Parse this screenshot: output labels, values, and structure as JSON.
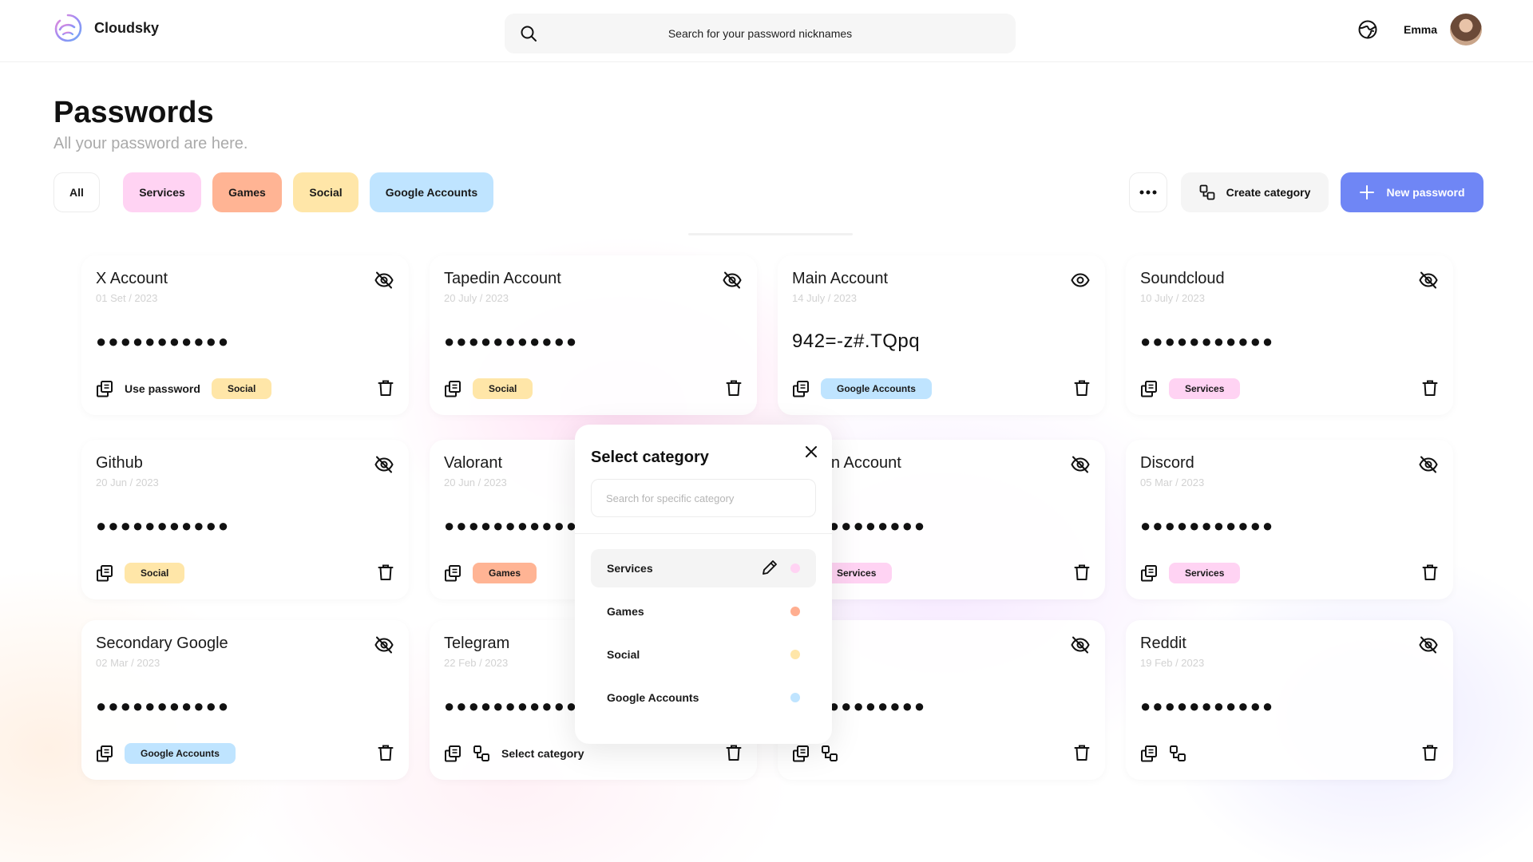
{
  "app": {
    "name": "Cloudsky"
  },
  "search": {
    "placeholder": "Search for your password nicknames"
  },
  "user": {
    "name": "Emma"
  },
  "page": {
    "title": "Passwords",
    "subtitle": "All your password are here."
  },
  "filters": [
    {
      "label": "All",
      "color": "#ffffff"
    },
    {
      "label": "Services",
      "color": "#ffd3f3"
    },
    {
      "label": "Games",
      "color": "#ffb494"
    },
    {
      "label": "Social",
      "color": "#ffe6a8"
    },
    {
      "label": "Google Accounts",
      "color": "#bfe4ff"
    }
  ],
  "actions": {
    "more_icon": "more-horizontal-icon",
    "create_category": "Create category",
    "new_password": "New password",
    "accent": "#6f86f5"
  },
  "tag_colors": {
    "Services": "#ffd3f3",
    "Games": "#ffb494",
    "Social": "#ffe6a8",
    "Google Accounts": "#bfe4ff"
  },
  "cards": [
    {
      "title": "X Account",
      "date": "01 Set / 2023",
      "password": "●●●●●●●●●●●",
      "visible": false,
      "action_label": "Use password",
      "tag": "Social"
    },
    {
      "title": "Tapedin Account",
      "date": "20 July / 2023",
      "password": "●●●●●●●●●●●",
      "visible": false,
      "action_label": "",
      "tag": "Social"
    },
    {
      "title": "Main Account",
      "date": "14 July / 2023",
      "password": "942=-z#.TQpq",
      "visible": true,
      "action_label": "",
      "tag": "Google Accounts"
    },
    {
      "title": "Soundcloud",
      "date": "10 July / 2023",
      "password": "●●●●●●●●●●●",
      "visible": false,
      "action_label": "",
      "tag": "Services"
    },
    {
      "title": "Github",
      "date": "20 Jun / 2023",
      "password": "●●●●●●●●●●●",
      "visible": false,
      "action_label": "",
      "tag": "Social"
    },
    {
      "title": "Valorant",
      "date": "20 Jun / 2023",
      "password": "●●●●●●●●●●●",
      "visible": false,
      "action_label": "",
      "tag": "Games"
    },
    {
      "title": "a Main Account",
      "date": "/ 2023",
      "password": "●●●●●●●●●●●",
      "visible": false,
      "action_label": "",
      "tag": "Services"
    },
    {
      "title": "Discord",
      "date": "05 Mar / 2023",
      "password": "●●●●●●●●●●●",
      "visible": false,
      "action_label": "",
      "tag": "Services"
    },
    {
      "title": "Secondary Google",
      "date": "02 Mar / 2023",
      "password": "●●●●●●●●●●●",
      "visible": false,
      "action_label": "",
      "tag": "Google Accounts"
    },
    {
      "title": "Telegram",
      "date": "22 Feb / 2023",
      "password": "●●●●●●●●●●●",
      "visible": false,
      "action_label": "Select category",
      "tag": ""
    },
    {
      "title": "m",
      "date": "/ 2023",
      "password": "●●●●●●●●●●●",
      "visible": false,
      "action_label": "",
      "tag": ""
    },
    {
      "title": "Reddit",
      "date": "19 Feb / 2023",
      "password": "●●●●●●●●●●●",
      "visible": false,
      "action_label": "",
      "tag": ""
    }
  ],
  "modal": {
    "title": "Select category",
    "search_placeholder": "Search for specific category",
    "items": [
      {
        "label": "Services",
        "color": "#ffd3f3",
        "active": true
      },
      {
        "label": "Games",
        "color": "#ffae90",
        "active": false
      },
      {
        "label": "Social",
        "color": "#ffe6a8",
        "active": false
      },
      {
        "label": "Google Accounts",
        "color": "#bfe4ff",
        "active": false
      }
    ]
  }
}
